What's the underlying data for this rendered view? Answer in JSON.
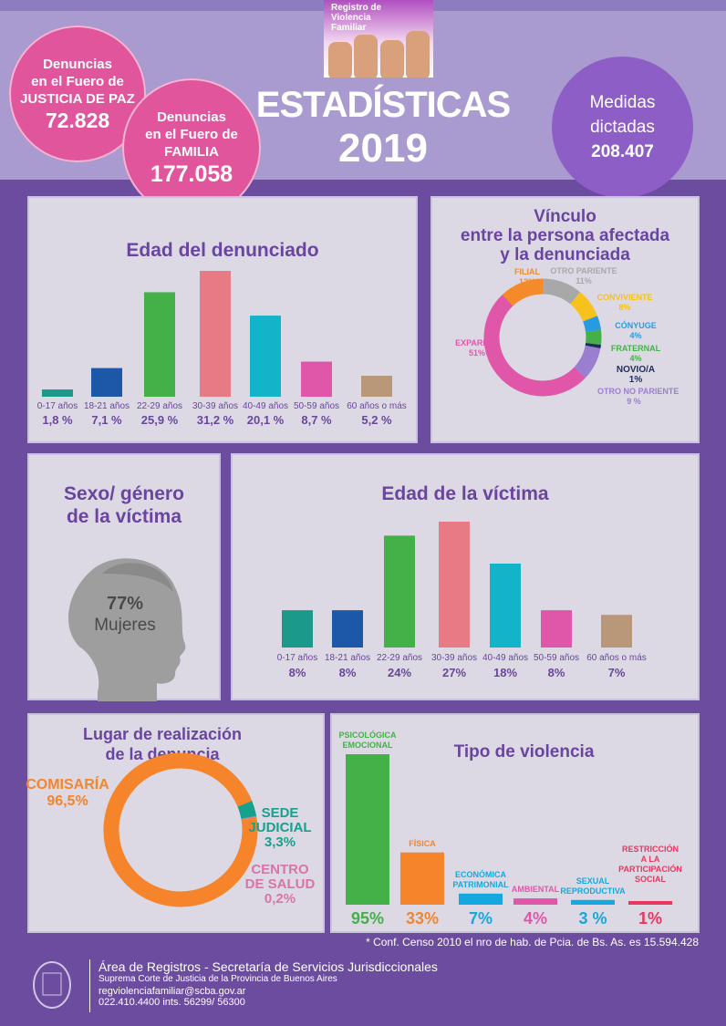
{
  "header": {
    "logo_text": "Registro de Violencia Familiar",
    "title": "ESTADÍSTICAS",
    "year": "2019"
  },
  "stats": {
    "paz": {
      "l1": "Denuncias",
      "l2": "en el Fuero de",
      "l3": "JUSTICIA DE PAZ",
      "value": "72.828"
    },
    "familia": {
      "l1": "Denuncias",
      "l2": "en el Fuero de",
      "l3": "FAMILIA",
      "value": "177.058"
    },
    "medidas": {
      "l1": "Medidas",
      "l2": "dictadas",
      "value": "208.407"
    }
  },
  "colors": {
    "purple": "#6c4c9f",
    "pink": "#e0559c",
    "panel": "#dcd9e4"
  },
  "chart_data": [
    {
      "id": "edad_denunciado",
      "type": "bar",
      "title": "Edad del denunciado",
      "categories": [
        "0-17 años",
        "18-21 años",
        "22-29 años",
        "30-39 años",
        "40-49 años",
        "50-59 años",
        "60 años o más"
      ],
      "values": [
        1.8,
        7.1,
        25.9,
        31.2,
        20.1,
        8.7,
        5.2
      ],
      "value_labels": [
        "1,8 %",
        "7,1 %",
        "25,9 %",
        "31,2 %",
        "20,1 %",
        "8,7 %",
        "5,2 %"
      ],
      "colors": [
        "#1b9a8b",
        "#1d58a8",
        "#44b048",
        "#e87a86",
        "#13b3c9",
        "#e057a9",
        "#b89878"
      ]
    },
    {
      "id": "vinculo",
      "type": "pie",
      "title": "Vínculo entre la persona afectada y la denunciada",
      "title_lines": [
        "Vínculo",
        "entre la persona afectada",
        "y la denunciada"
      ],
      "labels": [
        "OTRO PARIENTE",
        "CONVIVIENTE",
        "CÓNYUGE",
        "FRATERNAL",
        "NOVIO/A",
        "OTRO NO PARIENTE",
        "EXPAREJA",
        "FILIAL"
      ],
      "values": [
        11,
        8,
        4,
        4,
        1,
        9,
        51,
        12
      ],
      "value_labels": [
        "11%",
        "8%",
        "4%",
        "4%",
        "1%",
        "9 %",
        "51%",
        "12%"
      ],
      "colors": [
        "#a8a8a8",
        "#f6c21b",
        "#2a9ae0",
        "#44b048",
        "#1c2d5a",
        "#9a7fd0",
        "#e057a9",
        "#f58a2a"
      ]
    },
    {
      "id": "sexo",
      "type": "table",
      "title_lines": [
        "Sexo/ género",
        "de la víctima"
      ],
      "value": "77%",
      "label": "Mujeres"
    },
    {
      "id": "edad_victima",
      "type": "bar",
      "title": "Edad de la víctima",
      "categories": [
        "0-17 años",
        "18-21 años",
        "22-29 años",
        "30-39 años",
        "40-49 años",
        "50-59 años",
        "60 años o más"
      ],
      "values": [
        8,
        8,
        24,
        27,
        18,
        8,
        7
      ],
      "value_labels": [
        "8%",
        "8%",
        "24%",
        "27%",
        "18%",
        "8%",
        "7%"
      ],
      "colors": [
        "#1b9a8b",
        "#1d58a8",
        "#44b048",
        "#e87a86",
        "#13b3c9",
        "#e057a9",
        "#b89878"
      ]
    },
    {
      "id": "lugar",
      "type": "pie",
      "title_lines": [
        "Lugar de realización",
        "de la denuncia"
      ],
      "labels": [
        "COMISARÍA",
        "SEDE JUDICIAL",
        "CENTRO DE SALUD"
      ],
      "values": [
        96.5,
        3.3,
        0.2
      ],
      "value_labels": [
        "96,5%",
        "3,3%",
        "0,2%"
      ],
      "colors": [
        "#f5842a",
        "#17a08c",
        "#d874a8"
      ]
    },
    {
      "id": "tipo",
      "type": "bar",
      "title": "Tipo de violencia",
      "categories": [
        "PSICOLÓGICA EMOCIONAL",
        "FÍSICA",
        "ECONÓMICA PATRIMONIAL",
        "AMBIENTAL",
        "SEXUAL REPRODUCTIVA",
        "RESTRICCIÓN A LA PARTICIPACIÓN SOCIAL"
      ],
      "values": [
        95,
        33,
        7,
        4,
        3,
        1
      ],
      "value_labels": [
        "95%",
        "33%",
        "7%",
        "4%",
        "3 %",
        "1%"
      ],
      "colors": [
        "#44b048",
        "#f5842a",
        "#13a9e0",
        "#e057a9",
        "#13a9e0",
        "#e8365e"
      ]
    }
  ],
  "footnote": "* Conf. Censo 2010 el nro de hab. de Pcia. de Bs. As. es 15.594.428",
  "footer": {
    "line1": "Área de Registros - Secretaría de Servicios Jurisdiccionales",
    "line2": "Suprema Corte de Justicia de la Provincia de Buenos Aires",
    "email": "regviolenciafamiliar@scba.gov.ar",
    "phone": "022.410.4400 ints. 56299/ 56300"
  }
}
